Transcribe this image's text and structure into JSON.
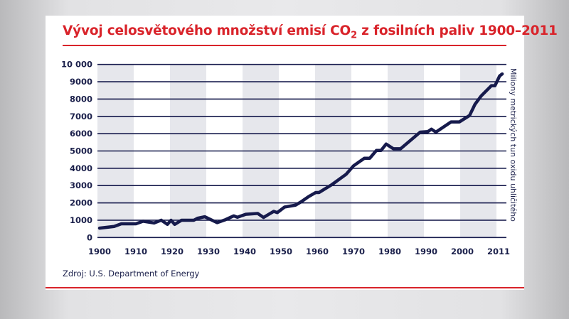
{
  "chart_data": {
    "type": "line",
    "title_main": "Vývoj celosvětového množství emisí CO",
    "title_sub": "2",
    "title_rest": " z fosilních paliv 1900–2011",
    "ylabel": "Miliony metrických tun oxidu uhličitého",
    "source": "Zdroj: U.S. Department of Energy",
    "xlim": [
      1900,
      2011
    ],
    "ylim": [
      0,
      10000
    ],
    "x_ticks": [
      1900,
      1910,
      1920,
      1930,
      1940,
      1950,
      1960,
      1970,
      1980,
      1990,
      2000,
      2011
    ],
    "y_ticks": [
      0,
      1000,
      2000,
      3000,
      4000,
      5000,
      6000,
      7000,
      8000,
      9000,
      10000
    ],
    "y_tick_labels": [
      "0",
      "1000",
      "2000",
      "3000",
      "4000",
      "5000",
      "6000",
      "7000",
      "8000",
      "9000",
      "10 000"
    ],
    "grid": "horizontal",
    "band_color": "#e6e7ec",
    "line_color": "#161a4c",
    "accent_color": "#d9232a",
    "series": [
      {
        "x": [
          1900,
          1904,
          1906,
          1910,
          1912,
          1915,
          1917,
          1918.7,
          1919.7,
          1920.7,
          1922.6,
          1926,
          1927,
          1929,
          1930,
          1932.4,
          1934.7,
          1937,
          1938,
          1940.3,
          1943.6,
          1945.2,
          1948,
          1949,
          1951,
          1954,
          1955.4,
          1957.6,
          1959.6,
          1960.5,
          1964,
          1968,
          1970,
          1973,
          1974.5,
          1976.3,
          1977.6,
          1979,
          1981,
          1983,
          1988.4,
          1990.5,
          1991.5,
          1992.7,
          1996.9,
          1999.2,
          2002,
          2003.5,
          2005.2,
          2008,
          2009,
          2010.3,
          2011
        ],
        "y": [
          540,
          640,
          790,
          790,
          940,
          840,
          1000,
          760,
          1000,
          760,
          1000,
          1000,
          1110,
          1200,
          1100,
          860,
          1030,
          1250,
          1170,
          1340,
          1390,
          1160,
          1510,
          1440,
          1760,
          1870,
          2040,
          2360,
          2600,
          2600,
          3050,
          3660,
          4140,
          4580,
          4580,
          5030,
          5030,
          5400,
          5130,
          5130,
          6090,
          6120,
          6260,
          6090,
          6680,
          6680,
          7050,
          7700,
          8180,
          8770,
          8770,
          9340,
          9450
        ]
      }
    ]
  }
}
